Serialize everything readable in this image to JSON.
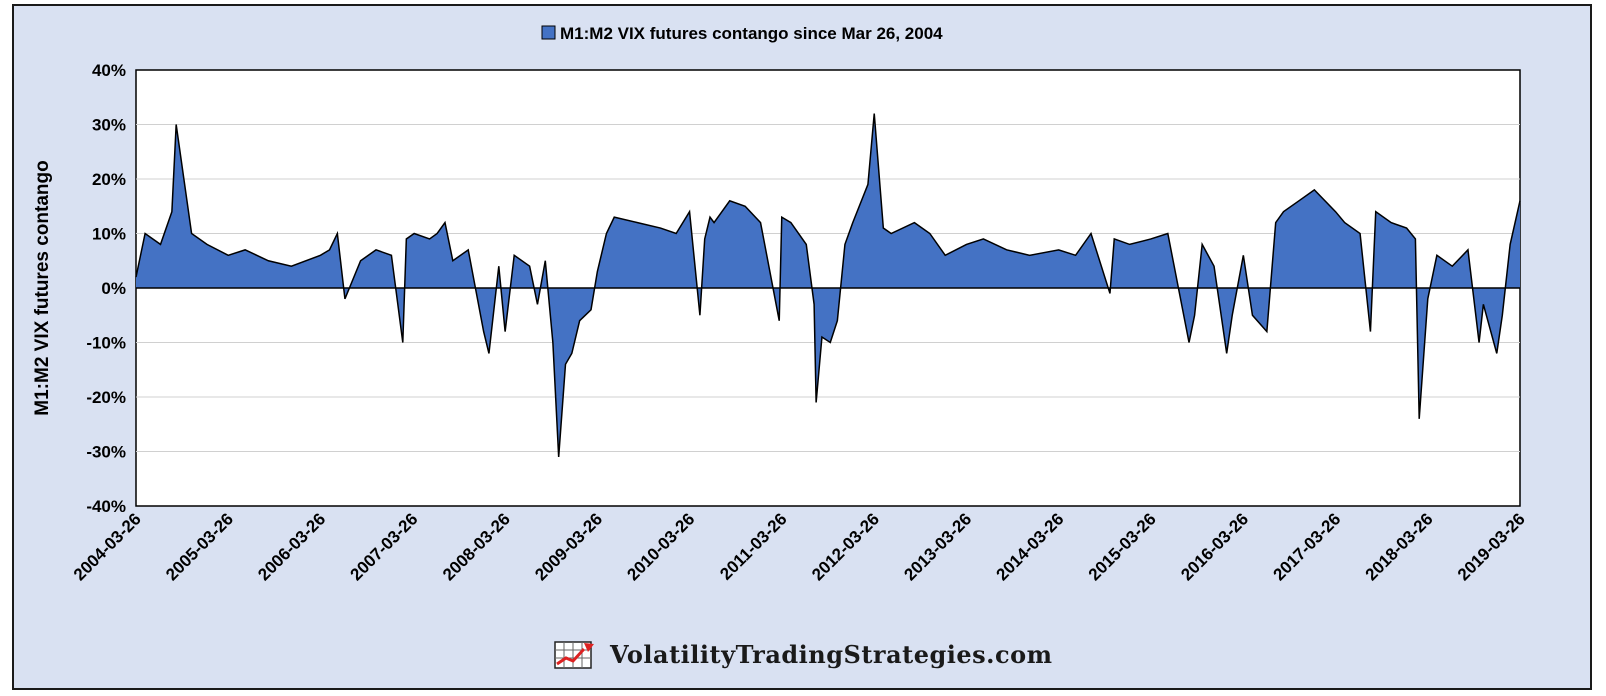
{
  "footer": {
    "site": "VolatilityTradingStrategies.com",
    "logo_icon": "rising-chart-arrow-icon"
  },
  "colors": {
    "frame_bg": "#d9e1f2",
    "fill": "#4472c4",
    "line": "#000000",
    "grid": "#d0d0d0"
  },
  "chart_data": {
    "type": "area",
    "title": "",
    "legend": {
      "label": "M1:M2 VIX futures contango since Mar 26, 2004",
      "placement": "top-center"
    },
    "xlabel": "",
    "ylabel": "M1:M2 VIX futures contango",
    "ylim": [
      -40,
      40
    ],
    "yticks": [
      "-40%",
      "-30%",
      "-20%",
      "-10%",
      "0%",
      "10%",
      "20%",
      "30%",
      "40%"
    ],
    "y_tick_values": [
      -40,
      -30,
      -20,
      -10,
      0,
      10,
      20,
      30,
      40
    ],
    "xlim": [
      "2004-03-26",
      "2019-03-26"
    ],
    "xticks": [
      "2004-03-26",
      "2005-03-26",
      "2006-03-26",
      "2007-03-26",
      "2008-03-26",
      "2009-03-26",
      "2010-03-26",
      "2011-03-26",
      "2012-03-26",
      "2013-03-26",
      "2014-03-26",
      "2015-03-26",
      "2016-03-26",
      "2017-03-26",
      "2018-03-26",
      "2019-03-26"
    ],
    "grid": true,
    "series": [
      {
        "name": "M1:M2 VIX futures contango since Mar 26, 2004",
        "x": [
          "2004-03-26",
          "2004-05-01",
          "2004-07-01",
          "2004-08-15",
          "2004-09-01",
          "2004-11-01",
          "2005-01-01",
          "2005-03-26",
          "2005-06-01",
          "2005-09-01",
          "2005-12-01",
          "2006-03-26",
          "2006-05-01",
          "2006-06-01",
          "2006-07-01",
          "2006-09-01",
          "2006-11-01",
          "2007-01-01",
          "2007-02-15",
          "2007-03-01",
          "2007-04-01",
          "2007-06-01",
          "2007-07-01",
          "2007-08-01",
          "2007-09-01",
          "2007-11-01",
          "2008-01-01",
          "2008-01-22",
          "2008-03-01",
          "2008-03-26",
          "2008-05-01",
          "2008-07-01",
          "2008-08-01",
          "2008-09-01",
          "2008-10-01",
          "2008-10-24",
          "2008-11-20",
          "2008-12-15",
          "2009-01-15",
          "2009-03-01",
          "2009-03-26",
          "2009-05-01",
          "2009-06-01",
          "2009-09-01",
          "2009-12-01",
          "2010-02-01",
          "2010-03-26",
          "2010-05-06",
          "2010-05-25",
          "2010-06-15",
          "2010-07-01",
          "2010-09-01",
          "2010-11-01",
          "2011-01-01",
          "2011-03-16",
          "2011-03-26",
          "2011-05-01",
          "2011-07-01",
          "2011-08-01",
          "2011-08-09",
          "2011-09-01",
          "2011-10-04",
          "2011-11-01",
          "2011-12-01",
          "2012-01-01",
          "2012-03-01",
          "2012-03-26",
          "2012-05-01",
          "2012-06-01",
          "2012-09-01",
          "2012-11-01",
          "2013-01-01",
          "2013-03-26",
          "2013-06-01",
          "2013-09-01",
          "2013-12-01",
          "2014-03-26",
          "2014-06-01",
          "2014-08-01",
          "2014-10-15",
          "2014-11-01",
          "2015-01-01",
          "2015-03-26",
          "2015-06-01",
          "2015-08-24",
          "2015-09-15",
          "2015-10-15",
          "2015-12-01",
          "2016-01-20",
          "2016-02-11",
          "2016-03-26",
          "2016-05-01",
          "2016-06-27",
          "2016-08-01",
          "2016-09-01",
          "2016-11-01",
          "2017-01-01",
          "2017-03-26",
          "2017-05-01",
          "2017-07-01",
          "2017-08-11",
          "2017-09-01",
          "2017-11-01",
          "2018-01-01",
          "2018-02-05",
          "2018-02-20",
          "2018-03-26",
          "2018-05-01",
          "2018-07-01",
          "2018-09-01",
          "2018-10-15",
          "2018-11-01",
          "2018-12-24",
          "2019-01-15",
          "2019-02-15",
          "2019-03-26"
        ],
        "values": [
          2,
          10,
          8,
          14,
          30,
          10,
          8,
          6,
          7,
          5,
          4,
          6,
          7,
          10,
          -2,
          5,
          7,
          6,
          -10,
          9,
          10,
          9,
          10,
          12,
          5,
          7,
          -8,
          -12,
          4,
          -8,
          6,
          4,
          -3,
          5,
          -10,
          -31,
          -14,
          -12,
          -6,
          -4,
          3,
          10,
          13,
          12,
          11,
          10,
          14,
          -5,
          9,
          13,
          12,
          16,
          15,
          12,
          -6,
          13,
          12,
          8,
          -3,
          -21,
          -9,
          -10,
          -6,
          8,
          12,
          19,
          32,
          11,
          10,
          12,
          10,
          6,
          8,
          9,
          7,
          6,
          7,
          6,
          10,
          -1,
          9,
          8,
          9,
          10,
          -10,
          -5,
          8,
          4,
          -12,
          -5,
          6,
          -5,
          -8,
          12,
          14,
          16,
          18,
          14,
          12,
          10,
          -8,
          14,
          12,
          11,
          9,
          -24,
          -2,
          6,
          4,
          7,
          -10,
          -3,
          -12,
          -5,
          8,
          16
        ]
      }
    ]
  }
}
